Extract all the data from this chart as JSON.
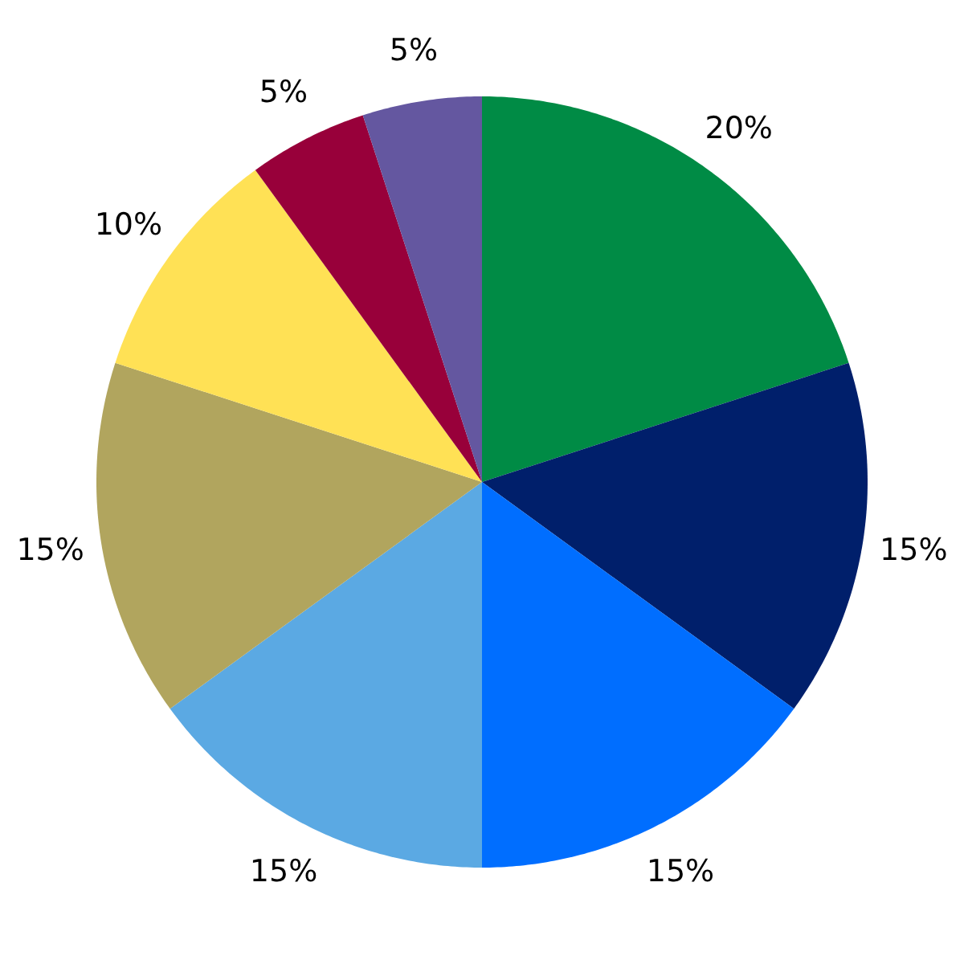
{
  "chart_data": {
    "type": "pie",
    "categories": [
      null,
      null,
      null,
      null,
      null,
      null,
      null,
      null
    ],
    "values": [
      20,
      15,
      15,
      15,
      15,
      10,
      5,
      5
    ],
    "value_labels": [
      "20%",
      "15%",
      "15%",
      "15%",
      "15%",
      "10%",
      "5%",
      "5%"
    ],
    "colors": [
      "#008b45",
      "#001f6b",
      "#006eff",
      "#5ba9e3",
      "#b1a55e",
      "#ffe155",
      "#98003a",
      "#6457a0"
    ]
  }
}
